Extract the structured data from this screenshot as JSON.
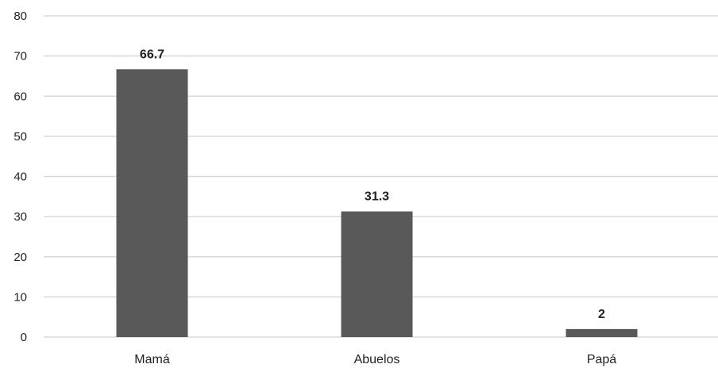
{
  "chart_data": {
    "type": "bar",
    "title": "",
    "xlabel": "",
    "ylabel": "",
    "categories": [
      "Mamá",
      "Abuelos",
      "Papá"
    ],
    "values": [
      66.7,
      31.3,
      2
    ],
    "data_labels": [
      "66.7",
      "31.3",
      "2"
    ],
    "ylim": [
      0,
      80
    ],
    "yticks": [
      0,
      10,
      20,
      30,
      40,
      50,
      60,
      70,
      80
    ],
    "ytick_labels": [
      "0",
      "10",
      "20",
      "30",
      "40",
      "50",
      "60",
      "70",
      "80"
    ],
    "grid": true,
    "legend": "none",
    "colors": {
      "bar": "#595959",
      "grid": "#d9d9d9",
      "text": "#222222"
    }
  }
}
